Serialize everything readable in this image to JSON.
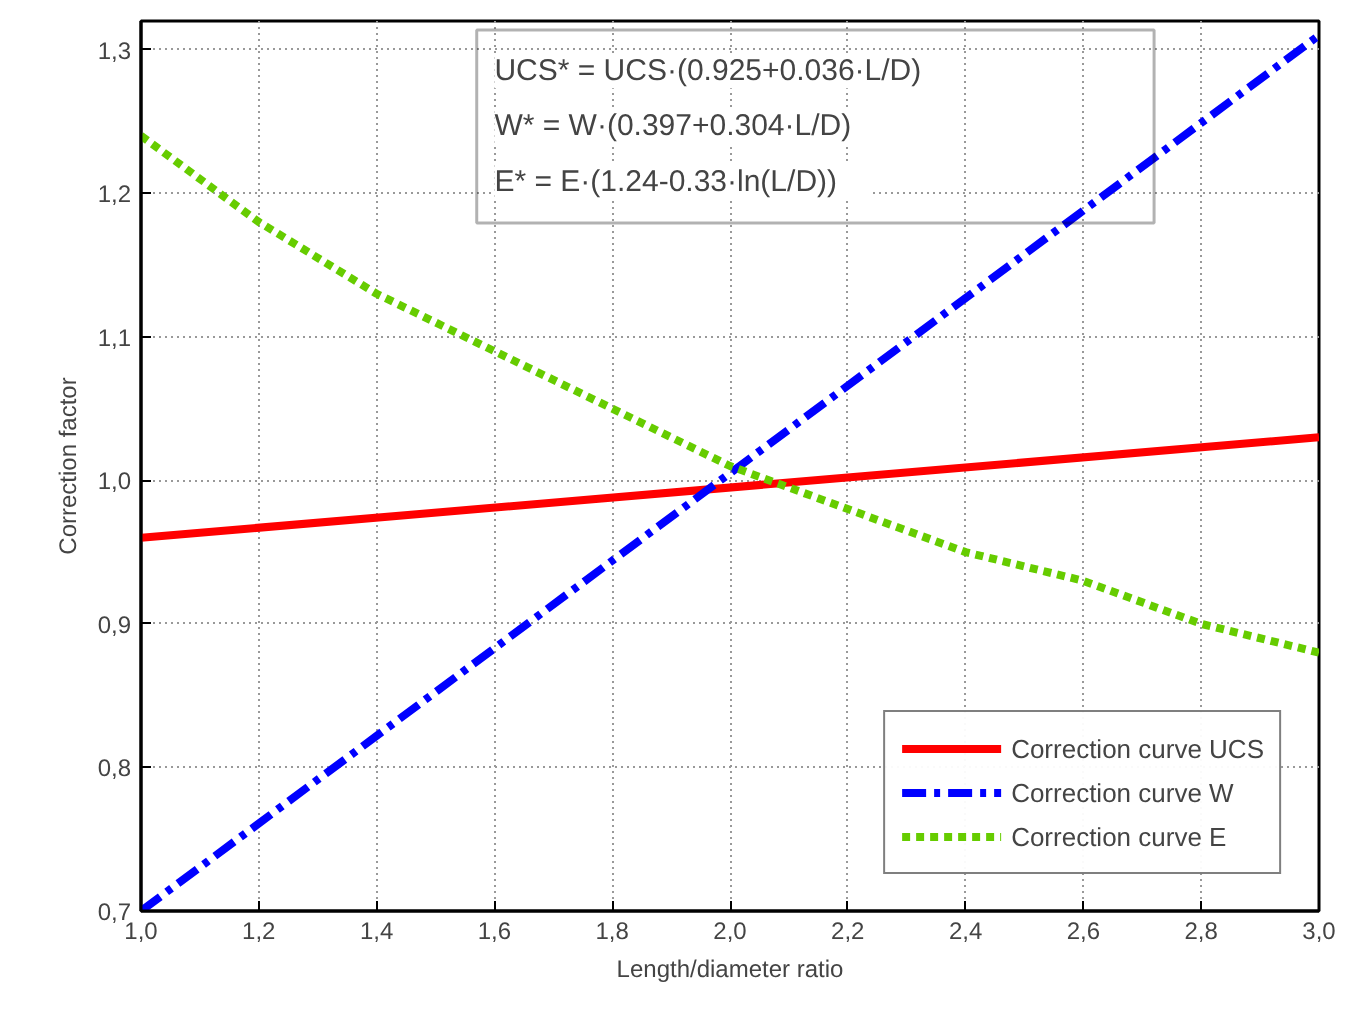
{
  "chart_data": {
    "type": "line",
    "xlabel": "Length/diameter ratio",
    "ylabel": "Correction factor",
    "xlim": [
      1.0,
      3.0
    ],
    "ylim": [
      0.7,
      1.32
    ],
    "xticks": [
      {
        "value": 1.0,
        "label": "1,0"
      },
      {
        "value": 1.2,
        "label": "1,2"
      },
      {
        "value": 1.4,
        "label": "1,4"
      },
      {
        "value": 1.6,
        "label": "1,6"
      },
      {
        "value": 1.8,
        "label": "1,8"
      },
      {
        "value": 2.0,
        "label": "2,0"
      },
      {
        "value": 2.2,
        "label": "2,2"
      },
      {
        "value": 2.4,
        "label": "2,4"
      },
      {
        "value": 2.6,
        "label": "2,6"
      },
      {
        "value": 2.8,
        "label": "2,8"
      },
      {
        "value": 3.0,
        "label": "3,0"
      }
    ],
    "yticks": [
      {
        "value": 0.7,
        "label": "0,7"
      },
      {
        "value": 0.8,
        "label": "0,8"
      },
      {
        "value": 0.9,
        "label": "0,9"
      },
      {
        "value": 1.0,
        "label": "1,0"
      },
      {
        "value": 1.1,
        "label": "1,1"
      },
      {
        "value": 1.2,
        "label": "1,2"
      },
      {
        "value": 1.3,
        "label": "1,3"
      }
    ],
    "grid": true,
    "legend": "bottom right",
    "marker": "none",
    "annotations": [
      "UCS* = UCS·(0.925+0.036·L/D)",
      "W*     = W·(0.397+0.304·L/D)",
      "E*     = E·(1.24-0.33·ln(L/D))"
    ],
    "series": [
      {
        "name": "Correction curve UCS",
        "color": "#ff0000",
        "line_style": "solid",
        "x": [
          1.0,
          3.0
        ],
        "values": [
          0.96,
          1.03
        ]
      },
      {
        "name": "Correction curve W",
        "color": "#0000ff",
        "line_style": "dashed",
        "x": [
          1.0,
          3.0
        ],
        "values": [
          0.7,
          1.31
        ]
      },
      {
        "name": "Correction curve E",
        "color": "#66cc00",
        "line_style": "dotted",
        "x": [
          1.0,
          1.2,
          1.4,
          1.6,
          1.8,
          2.0,
          2.2,
          2.4,
          2.6,
          2.8,
          3.0
        ],
        "values": [
          1.24,
          1.18,
          1.13,
          1.09,
          1.05,
          1.01,
          0.98,
          0.95,
          0.93,
          0.9,
          0.88
        ]
      }
    ]
  }
}
